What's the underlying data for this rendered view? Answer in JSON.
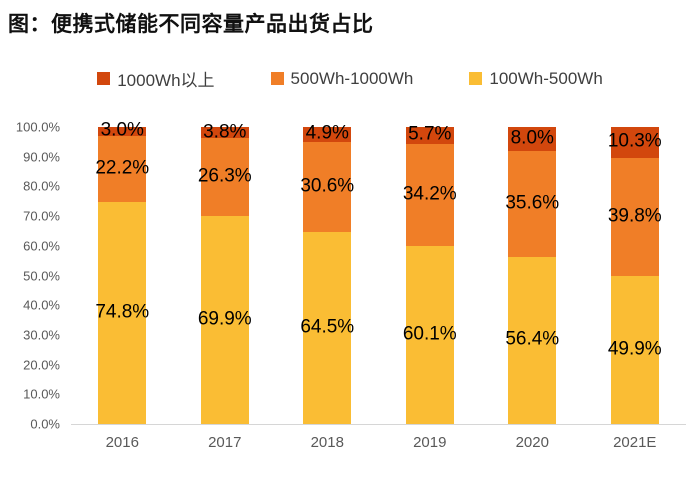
{
  "title": "图：便携式储能不同容量产品出货占比",
  "legend": [
    {
      "label": "1000Wh以上",
      "color": "#d2470d"
    },
    {
      "label": "500Wh-1000Wh",
      "color": "#f07e27"
    },
    {
      "label": "100Wh-500Wh",
      "color": "#fabd34"
    }
  ],
  "colors": {
    "series_1000wh_plus": "#d2470d",
    "series_500_1000wh": "#f07e27",
    "series_100_500wh": "#fabd34",
    "axis_text": "#595959",
    "data_label": "#000000",
    "baseline": "#d6d6d6"
  },
  "chart_data": {
    "type": "bar",
    "stacked": true,
    "title": "图：便携式储能不同容量产品出货占比",
    "categories": [
      "2016",
      "2017",
      "2018",
      "2019",
      "2020",
      "2021E"
    ],
    "series": [
      {
        "name": "100Wh-500Wh",
        "color": "#fabd34",
        "values": [
          74.8,
          69.9,
          64.5,
          60.1,
          56.4,
          49.9
        ]
      },
      {
        "name": "500Wh-1000Wh",
        "color": "#f07e27",
        "values": [
          22.2,
          26.3,
          30.6,
          34.2,
          35.6,
          39.8
        ]
      },
      {
        "name": "1000Wh以上",
        "color": "#d2470d",
        "values": [
          3.0,
          3.8,
          4.9,
          5.7,
          8.0,
          10.3
        ]
      }
    ],
    "value_label_format": "{value}%",
    "y_ticks": [
      "100.0%",
      "90.0%",
      "80.0%",
      "70.0%",
      "60.0%",
      "50.0%",
      "40.0%",
      "30.0%",
      "20.0%",
      "10.0%",
      "0.0%"
    ],
    "ylim": [
      0,
      100
    ],
    "xlabel": "",
    "ylabel": "",
    "grid": false,
    "legend_position": "top"
  }
}
